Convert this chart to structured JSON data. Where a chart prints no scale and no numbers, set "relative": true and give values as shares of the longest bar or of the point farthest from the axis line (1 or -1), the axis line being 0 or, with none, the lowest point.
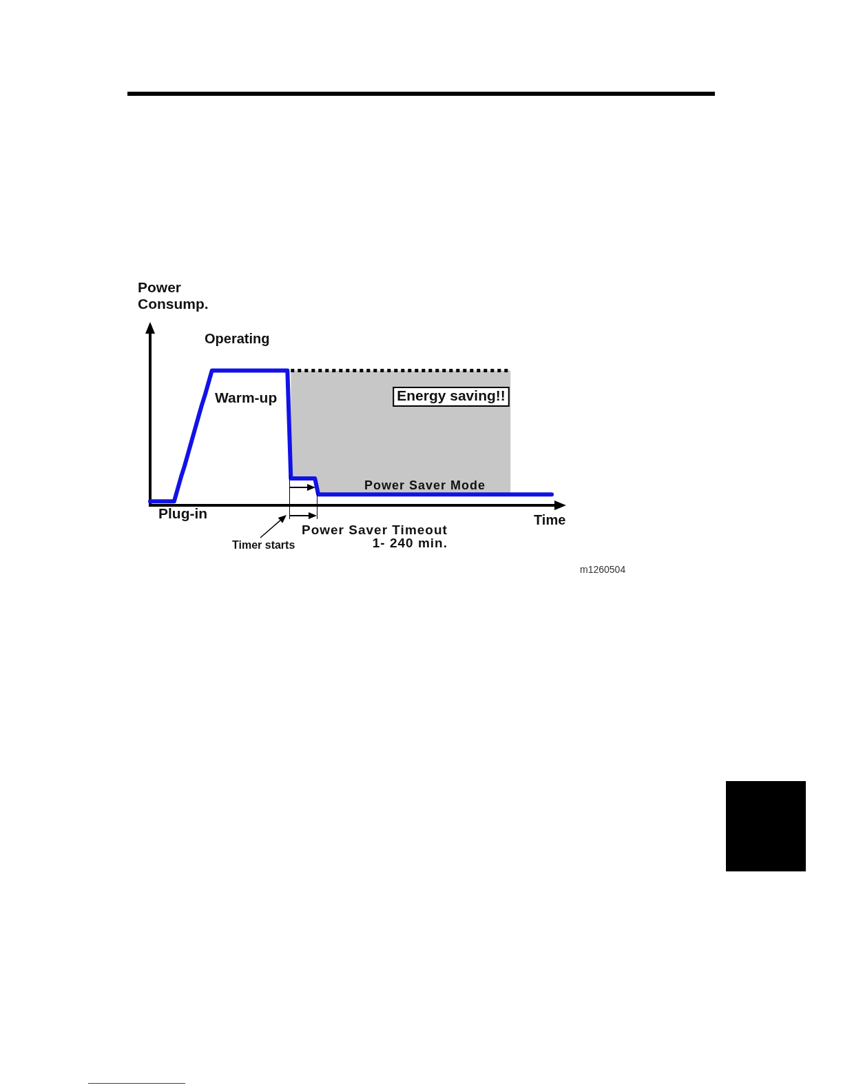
{
  "chart_data": {
    "type": "line",
    "relative": true,
    "xlabel": "Time",
    "ylabel": "Power Consump.",
    "annotations": [
      "Operating",
      "Warm-up",
      "Energy saving!!",
      "Power Saver Mode",
      "Plug-in",
      "Timer starts",
      "Power Saver Timeout",
      "1- 240 min.",
      "m1260504"
    ],
    "categories": [
      null,
      null,
      null,
      null,
      null,
      null,
      null,
      null,
      null,
      null,
      null,
      null,
      null,
      null,
      null,
      null,
      null,
      null,
      null,
      null,
      null,
      null,
      null,
      null,
      null,
      null,
      null,
      null,
      null,
      null,
      null,
      null,
      null,
      null,
      null,
      null,
      null,
      null,
      null,
      null,
      null,
      null,
      null,
      null,
      null,
      null,
      null,
      null,
      null,
      null,
      null,
      null,
      null,
      null,
      null,
      null,
      null,
      null,
      null,
      null,
      null,
      null,
      null,
      null,
      null,
      null,
      null,
      null,
      null,
      null,
      null,
      null,
      null,
      null,
      null,
      null,
      null,
      null,
      null,
      null,
      null,
      null,
      null,
      null,
      null,
      null,
      null,
      null,
      null,
      null,
      null,
      null,
      null,
      null,
      null,
      null,
      null,
      null,
      null,
      null,
      null,
      null,
      null,
      null,
      null,
      null,
      null,
      null,
      null,
      null,
      null,
      null,
      null,
      null,
      null,
      null,
      null,
      null,
      null,
      null,
      null
    ],
    "series": [
      {
        "color": "#000000",
        "line_style": "dotted",
        "values": [
          null,
          null,
          null,
          null,
          null,
          null,
          null,
          null,
          null,
          null,
          null,
          null,
          null,
          null,
          null,
          null,
          null,
          null,
          null,
          null,
          null,
          null,
          null,
          null,
          null,
          null,
          null,
          null,
          null,
          null,
          null,
          null,
          null,
          null,
          null,
          null,
          null,
          null,
          null,
          null,
          null,
          1,
          1,
          1,
          1,
          1,
          1,
          1,
          1,
          1,
          1,
          1,
          1,
          1,
          1,
          1,
          1,
          1,
          1,
          1,
          1,
          1,
          1,
          1,
          1,
          1,
          1,
          1,
          1,
          1,
          1,
          1,
          1,
          1,
          1,
          1,
          1,
          1,
          1,
          1,
          1,
          1,
          1,
          1,
          1,
          1,
          1,
          1,
          1,
          1,
          1,
          1,
          1,
          1,
          1,
          1,
          1,
          1,
          1,
          1,
          1,
          1,
          1,
          1,
          1,
          1,
          null,
          null,
          null,
          null,
          null,
          null,
          null,
          null,
          null,
          null,
          null,
          null,
          null,
          null,
          null
        ],
        "upper": [
          null,
          null,
          null,
          null,
          null,
          null,
          null,
          null,
          null,
          null,
          null,
          null,
          null,
          null,
          null,
          null,
          null,
          null,
          null,
          null,
          null,
          null,
          null,
          null,
          null,
          null,
          null,
          null,
          null,
          null,
          null,
          null,
          null,
          null,
          null,
          null,
          null,
          null,
          null,
          null,
          null,
          1,
          1,
          1,
          1,
          1,
          1,
          1,
          1,
          1,
          1,
          1,
          1,
          1,
          1,
          1,
          1,
          1,
          1,
          1,
          1,
          1,
          1,
          1,
          1,
          1,
          1,
          1,
          1,
          1,
          1,
          1,
          1,
          1,
          1,
          1,
          1,
          1,
          1,
          1,
          1,
          1,
          1,
          1,
          1,
          1,
          1,
          1,
          1,
          1,
          1,
          1,
          1,
          1,
          1,
          1,
          1,
          1,
          1,
          1,
          1,
          1,
          1,
          1,
          1,
          1,
          null,
          null,
          null,
          null,
          null,
          null,
          null,
          null,
          null,
          null,
          null,
          null,
          null,
          null,
          null
        ],
        "lower": [
          null,
          null,
          null,
          null,
          null,
          null,
          null,
          null,
          null,
          null,
          null,
          null,
          null,
          null,
          null,
          null,
          null,
          null,
          null,
          null,
          null,
          null,
          null,
          null,
          null,
          null,
          null,
          null,
          null,
          null,
          null,
          null,
          null,
          null,
          null,
          null,
          null,
          null,
          null,
          null,
          null,
          0.2,
          0.2,
          0.2,
          0.2,
          0.2,
          0.2,
          0.2,
          0.2,
          0.08,
          0.08,
          0.08,
          0.08,
          0.08,
          0.08,
          0.08,
          0.08,
          0.08,
          0.08,
          0.08,
          0.08,
          0.08,
          0.08,
          0.08,
          0.08,
          0.08,
          0.08,
          0.08,
          0.08,
          0.08,
          0.08,
          0.08,
          0.08,
          0.08,
          0.08,
          0.08,
          0.08,
          0.08,
          0.08,
          0.08,
          0.08,
          0.08,
          0.08,
          0.08,
          0.08,
          0.08,
          0.08,
          0.08,
          0.08,
          0.08,
          0.08,
          0.08,
          0.08,
          0.08,
          0.08,
          0.08,
          0.08,
          0.08,
          0.08,
          0.08,
          0.08,
          0.08,
          0.08,
          0.08,
          0.08,
          0.08,
          null,
          null,
          null,
          null,
          null,
          null,
          null,
          null,
          null,
          null,
          null,
          null,
          null,
          null,
          null
        ]
      },
      {
        "color": "#1212e6",
        "line_style": "solid",
        "values": [
          0.03,
          0.03,
          0.03,
          0.03,
          0.03,
          0.03,
          0.03,
          0.03,
          0.12,
          0.21,
          0.29,
          0.38,
          0.47,
          0.56,
          0.65,
          0.74,
          0.82,
          0.91,
          1,
          1,
          1,
          1,
          1,
          1,
          1,
          1,
          1,
          1,
          1,
          1,
          1,
          1,
          1,
          1,
          1,
          1,
          1,
          1,
          1,
          1,
          1,
          0.2,
          0.2,
          0.2,
          0.2,
          0.2,
          0.2,
          0.2,
          0.2,
          0.08,
          0.08,
          0.08,
          0.08,
          0.08,
          0.08,
          0.08,
          0.08,
          0.08,
          0.08,
          0.08,
          0.08,
          0.08,
          0.08,
          0.08,
          0.08,
          0.08,
          0.08,
          0.08,
          0.08,
          0.08,
          0.08,
          0.08,
          0.08,
          0.08,
          0.08,
          0.08,
          0.08,
          0.08,
          0.08,
          0.08,
          0.08,
          0.08,
          0.08,
          0.08,
          0.08,
          0.08,
          0.08,
          0.08,
          0.08,
          0.08,
          0.08,
          0.08,
          0.08,
          0.08,
          0.08,
          0.08,
          0.08,
          0.08,
          0.08,
          0.08,
          0.08,
          0.08,
          0.08,
          0.08,
          0.08,
          0.08,
          0.08,
          0.08,
          0.08,
          0.08,
          0.08,
          0.08,
          0.08,
          0.08,
          0.08,
          0.08,
          0.08,
          0.08,
          null,
          null,
          null
        ]
      }
    ]
  }
}
